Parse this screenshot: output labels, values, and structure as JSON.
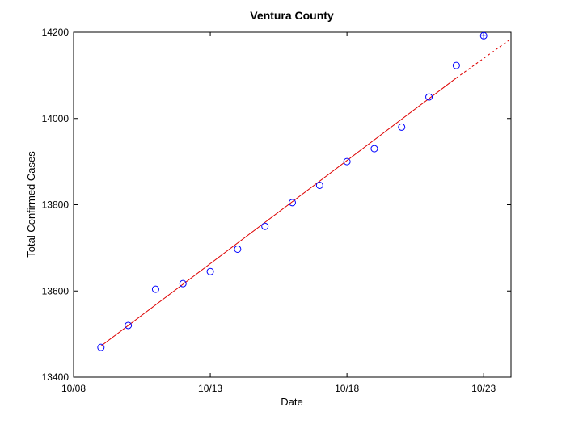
{
  "chart_data": {
    "type": "scatter",
    "title": "Ventura County",
    "xlabel": "Date",
    "ylabel": "Total Confirmed Cases",
    "x_ticks": [
      "10/08",
      "10/13",
      "10/18",
      "10/23"
    ],
    "y_ticks": [
      13400,
      13600,
      13800,
      14000,
      14200
    ],
    "xlim": [
      "10/08",
      "10/24"
    ],
    "ylim": [
      13400,
      14200
    ],
    "grid": false,
    "series": [
      {
        "marker": "circle",
        "color": "#0000ff",
        "x": [
          "10/09",
          "10/10",
          "10/11",
          "10/12",
          "10/13",
          "10/14",
          "10/15",
          "10/16",
          "10/17",
          "10/18",
          "10/19",
          "10/20",
          "10/21",
          "10/22"
        ],
        "y": [
          13469,
          13520,
          13604,
          13617,
          13645,
          13697,
          13750,
          13805,
          13845,
          13900,
          13930,
          13980,
          14050,
          14123
        ]
      },
      {
        "marker": "circle-plus",
        "color": "#0000ff",
        "x": [
          "10/23"
        ],
        "y": [
          14192
        ]
      }
    ],
    "fit_line": {
      "color": "#dd0000",
      "solid": {
        "x": [
          "10/09",
          "10/22"
        ],
        "y": [
          13472,
          14094
        ]
      },
      "dashed": {
        "x": [
          "10/22",
          "10/24"
        ],
        "y": [
          14094,
          14185
        ]
      }
    }
  }
}
